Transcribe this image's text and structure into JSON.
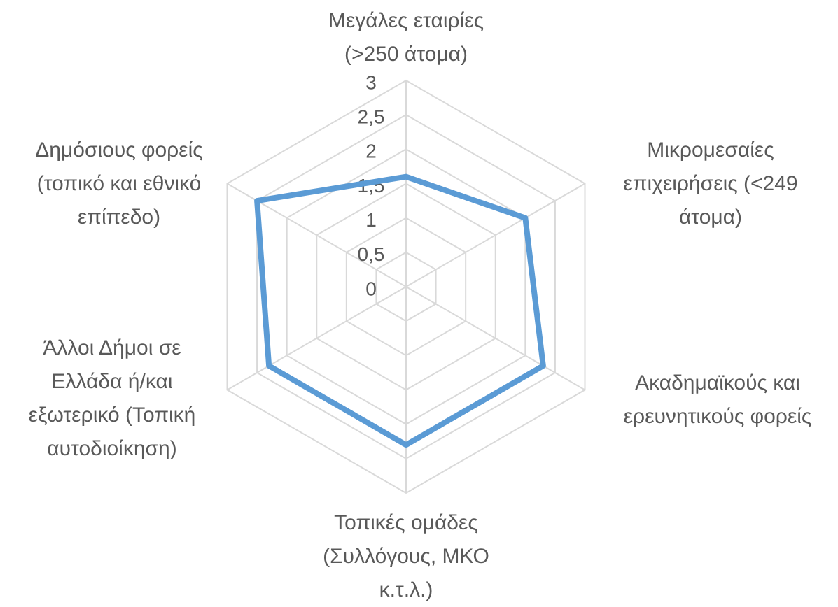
{
  "chart_data": {
    "type": "radar",
    "categories": [
      "Μεγάλες εταιρίες\n(>250 άτομα)",
      "Μικρομεσαίες\nεπιχειρήσεις (<249\nάτομα)",
      "Ακαδημαϊκούς και\nερευνητικούς φορείς",
      "Τοπικές ομάδες\n(Συλλόγους, ΜΚΟ\nκ.τ.λ.)",
      "Άλλοι Δήμοι σε\nΕλλάδα ή/και\nεξωτερικό (Τοπική\nαυτοδιοίκηση)",
      "Δημόσιους φορείς\n(τοπικό και εθνικό\nεπίπεδο)"
    ],
    "values": [
      1.6,
      2.0,
      2.3,
      2.3,
      2.3,
      2.5
    ],
    "color": "#5b9bd5",
    "ylim": [
      0,
      3
    ],
    "yticks": [
      0,
      {
        "value": 0.5,
        "label": "0,5"
      },
      1,
      {
        "value": 1.5,
        "label": "1,5"
      },
      2,
      {
        "value": 2.5,
        "label": "2,5"
      },
      3
    ],
    "grid": true
  }
}
